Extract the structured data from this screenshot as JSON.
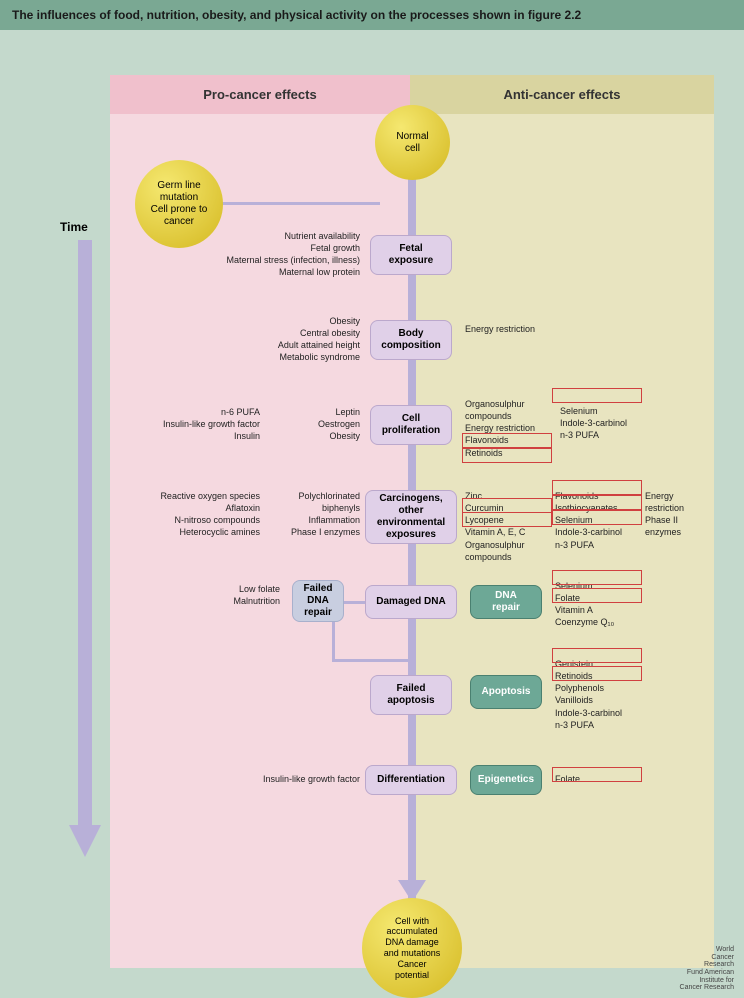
{
  "title": "The influences of food, nutrition, obesity, and physical activity on the processes shown in figure 2.2",
  "headers": {
    "pro": "Pro-cancer effects",
    "anti": "Anti-cancer effects"
  },
  "time_label": "Time",
  "circles": {
    "normal": "Normal\ncell",
    "germ": "Germ line\nmutation\nCell prone to\ncancer",
    "cancer": "Cell with\naccumulated\nDNA damage\nand mutations\nCancer\npotential"
  },
  "stages": {
    "fetal": "Fetal\nexposure",
    "body": "Body\ncomposition",
    "cell": "Cell\nproliferation",
    "carc": "Carcinogens,\nother\nenvironmental\nexposures",
    "failed_dna": "Failed\nDNA\nrepair",
    "damaged": "Damaged DNA",
    "dna_repair": "DNA\nrepair",
    "failed_apo": "Failed\napoptosis",
    "apoptosis": "Apoptosis",
    "diff": "Differentiation",
    "epi": "Epigenetics"
  },
  "pro": {
    "fetal": "Nutrient availability\nFetal growth\nMaternal stress (infection, illness)\nMaternal low protein",
    "body": "Obesity\nCentral obesity\nAdult attained height\nMetabolic syndrome",
    "cell_a": "n-6 PUFA\nInsulin-like growth factor\nInsulin",
    "cell_b": "Leptin\nOestrogen\nObesity",
    "carc_a": "Reactive oxygen species\nAflatoxin\nN-nitroso compounds\nHeterocyclic amines",
    "carc_b": "Polychlorinated\nbiphenyls\nInflammation\nPhase I enzymes",
    "damaged": "Low folate\nMalnutrition",
    "diff": "Insulin-like growth factor"
  },
  "anti": {
    "body": "Energy restriction",
    "cell_a": "Organosulphur\ncompounds\nEnergy restriction\nFlavonoids\nRetinoids",
    "cell_b": "Selenium\nIndole-3-carbinol\nn-3 PUFA",
    "carc_a": "Zinc\nCurcumin\nLycopene\nVitamin A, E, C\nOrganosulphur\ncompounds",
    "carc_b": "Flavonoids\nIsothiocyanates\nSelenium\nIndole-3-carbinol\nn-3 PUFA",
    "carc_c": "Energy\nrestriction\nPhase II\nenzymes",
    "dna": "Selenium\nFolate\nVitamin A\nCoenzyme Q₁₀",
    "apo": "Genistein\nRetinoids\nPolyphenols\nVanilloids\nIndole-3-carbinol\nn-3 PUFA",
    "epi": "Folate"
  },
  "footer": "World\nCancer\nResearch\nFund    American\nInstitute for\nCancer Research"
}
